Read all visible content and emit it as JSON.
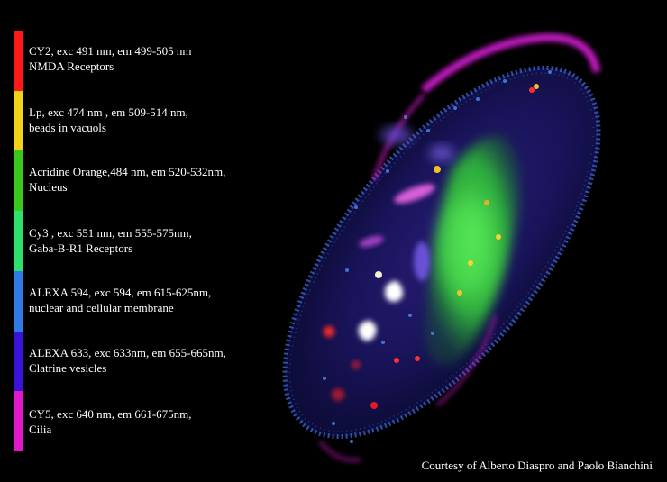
{
  "legend": {
    "colors": [
      "#ff1a1a",
      "#f5d21a",
      "#39c81e",
      "#2ee06a",
      "#2f7be6",
      "#3a12d8",
      "#e01ac8"
    ],
    "entries": [
      {
        "line1": "CY2, exc 491 nm, em 499-505 nm",
        "line2": "NMDA Receptors"
      },
      {
        "line1": "Lp, exc  474 nm , em 509-514 nm,",
        "line2": "beads in vacuols"
      },
      {
        "line1": "Acridine Orange,484 nm, em 520-532nm,",
        "line2": "Nucleus"
      },
      {
        "line1": "Cy3 , exc  551 nm, em 555-575nm,",
        "line2": "Gaba-B-R1 Receptors"
      },
      {
        "line1": "ALEXA 594, exc 594, em 615-625nm,",
        "line2": "nuclear and cellular membrane"
      },
      {
        "line1": "ALEXA 633, exc  633nm, em  655-665nm,",
        "line2": "Clatrine vesicles"
      },
      {
        "line1": "CY5, exc 640 nm, em 661-675nm,",
        "line2": "Cilia"
      }
    ]
  },
  "credit": "Courtesy of Alberto Diaspro and Paolo Bianchini"
}
